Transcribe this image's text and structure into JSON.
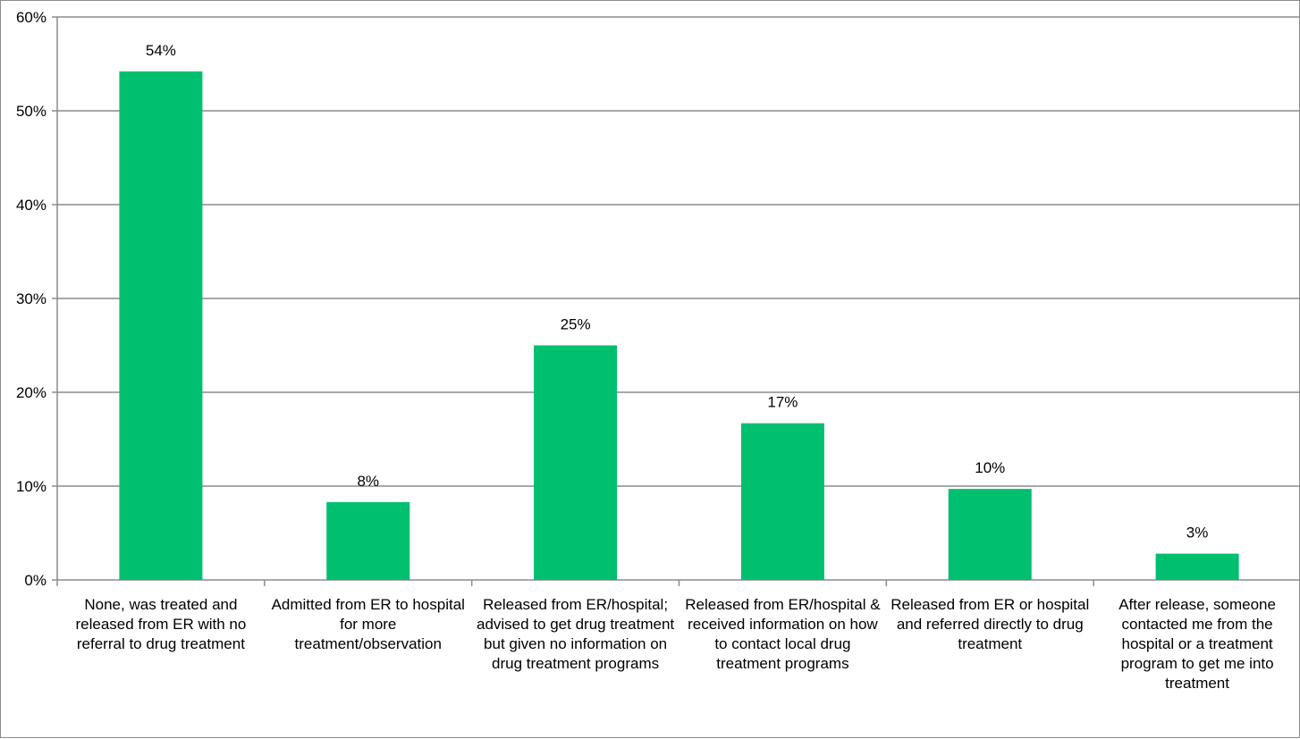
{
  "chart_data": {
    "type": "bar",
    "categories": [
      [
        "None, was treated and",
        "released from ER with no",
        "referral to drug treatment"
      ],
      [
        "Admitted from ER to hospital",
        "for more",
        "treatment/observation"
      ],
      [
        "Released from ER/hospital;",
        "advised to get drug treatment",
        "but given no information on",
        "drug treatment programs"
      ],
      [
        "Released from ER/hospital &",
        "received information on how",
        "to contact local drug",
        "treatment programs"
      ],
      [
        "Released from ER or hospital",
        "and referred directly to drug",
        "treatment"
      ],
      [
        "After release, someone",
        "contacted me from the",
        "hospital or a treatment",
        "program to get me into",
        "treatment"
      ]
    ],
    "values": [
      54.2,
      8.3,
      25.0,
      16.7,
      9.7,
      2.8
    ],
    "data_labels": [
      "54%",
      "8%",
      "25%",
      "17%",
      "10%",
      "3%"
    ],
    "y_ticks": [
      "0%",
      "10%",
      "20%",
      "30%",
      "40%",
      "50%",
      "60%"
    ],
    "ylim": [
      0,
      60
    ],
    "grid": true,
    "bar_color": "#00bf6f",
    "title": "",
    "xlabel": "",
    "ylabel": ""
  }
}
